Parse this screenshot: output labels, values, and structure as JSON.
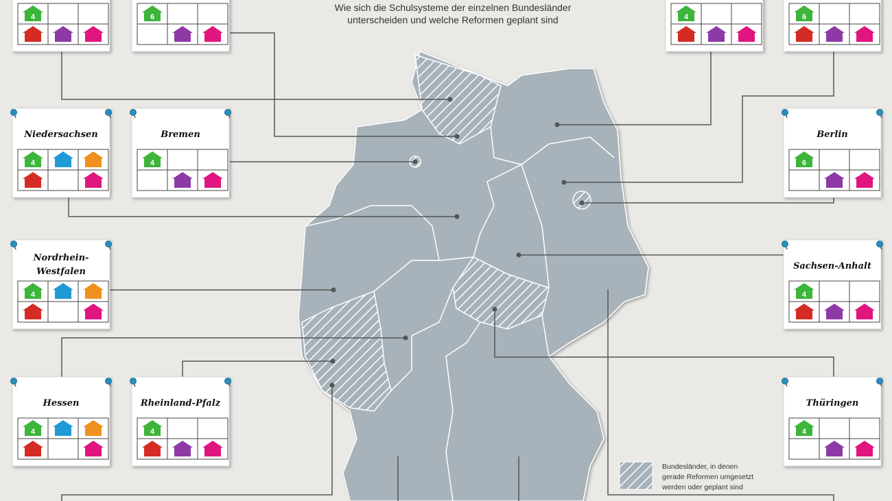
{
  "subtitle": [
    "Wie sich die Schulsysteme der einzelnen Bundesländer",
    "unterscheiden und welche Reformen geplant sind"
  ],
  "cards": [
    {
      "number": 4,
      "houses": [
        "#3db43a",
        null,
        null,
        "#d42c24",
        "#8e3aa6",
        "#e0157f"
      ]
    },
    {
      "number": 6,
      "houses": [
        "#3db43a",
        null,
        null,
        null,
        "#8e3aa6",
        "#e0157f"
      ]
    },
    {
      "number": 4,
      "houses": [
        "#3db43a",
        null,
        null,
        "#d42c24",
        "#8e3aa6",
        "#e0157f"
      ]
    },
    {
      "number": 6,
      "houses": [
        "#3db43a",
        null,
        null,
        "#d42c24",
        "#8e3aa6",
        "#e0157f"
      ]
    },
    {
      "name": "Niedersachsen",
      "number": 4,
      "houses": [
        "#3db43a",
        "#1f9ad6",
        "#f0901e",
        "#d42c24",
        null,
        "#e0157f"
      ]
    },
    {
      "name": "Bremen",
      "number": 4,
      "houses": [
        "#3db43a",
        null,
        null,
        null,
        "#8e3aa6",
        "#e0157f"
      ]
    },
    {
      "name": "Berlin",
      "number": 6,
      "houses": [
        "#3db43a",
        null,
        null,
        null,
        "#8e3aa6",
        "#e0157f"
      ]
    },
    {
      "name": "Nordrhein-",
      "name2": "Westfalen",
      "number": 4,
      "houses": [
        "#3db43a",
        "#1f9ad6",
        "#f0901e",
        "#d42c24",
        null,
        "#e0157f"
      ]
    },
    {
      "name": "Sachsen-Anhalt",
      "number": 4,
      "houses": [
        "#3db43a",
        null,
        null,
        "#d42c24",
        "#8e3aa6",
        "#e0157f"
      ]
    },
    {
      "name": "Hessen",
      "number": 4,
      "houses": [
        "#3db43a",
        "#1f9ad6",
        "#f0901e",
        "#d42c24",
        null,
        "#e0157f"
      ]
    },
    {
      "name": "Rheinland-Pfalz",
      "number": 4,
      "houses": [
        "#3db43a",
        null,
        null,
        "#d42c24",
        "#8e3aa6",
        "#e0157f"
      ]
    },
    {
      "name": "Thüringen",
      "number": 4,
      "houses": [
        "#3db43a",
        null,
        null,
        null,
        "#8e3aa6",
        "#e0157f"
      ]
    }
  ],
  "legend": {
    "text": [
      "Bundesländer, in denen",
      "gerade Reformen umgesetzt",
      "werden oder geplant sind"
    ]
  }
}
